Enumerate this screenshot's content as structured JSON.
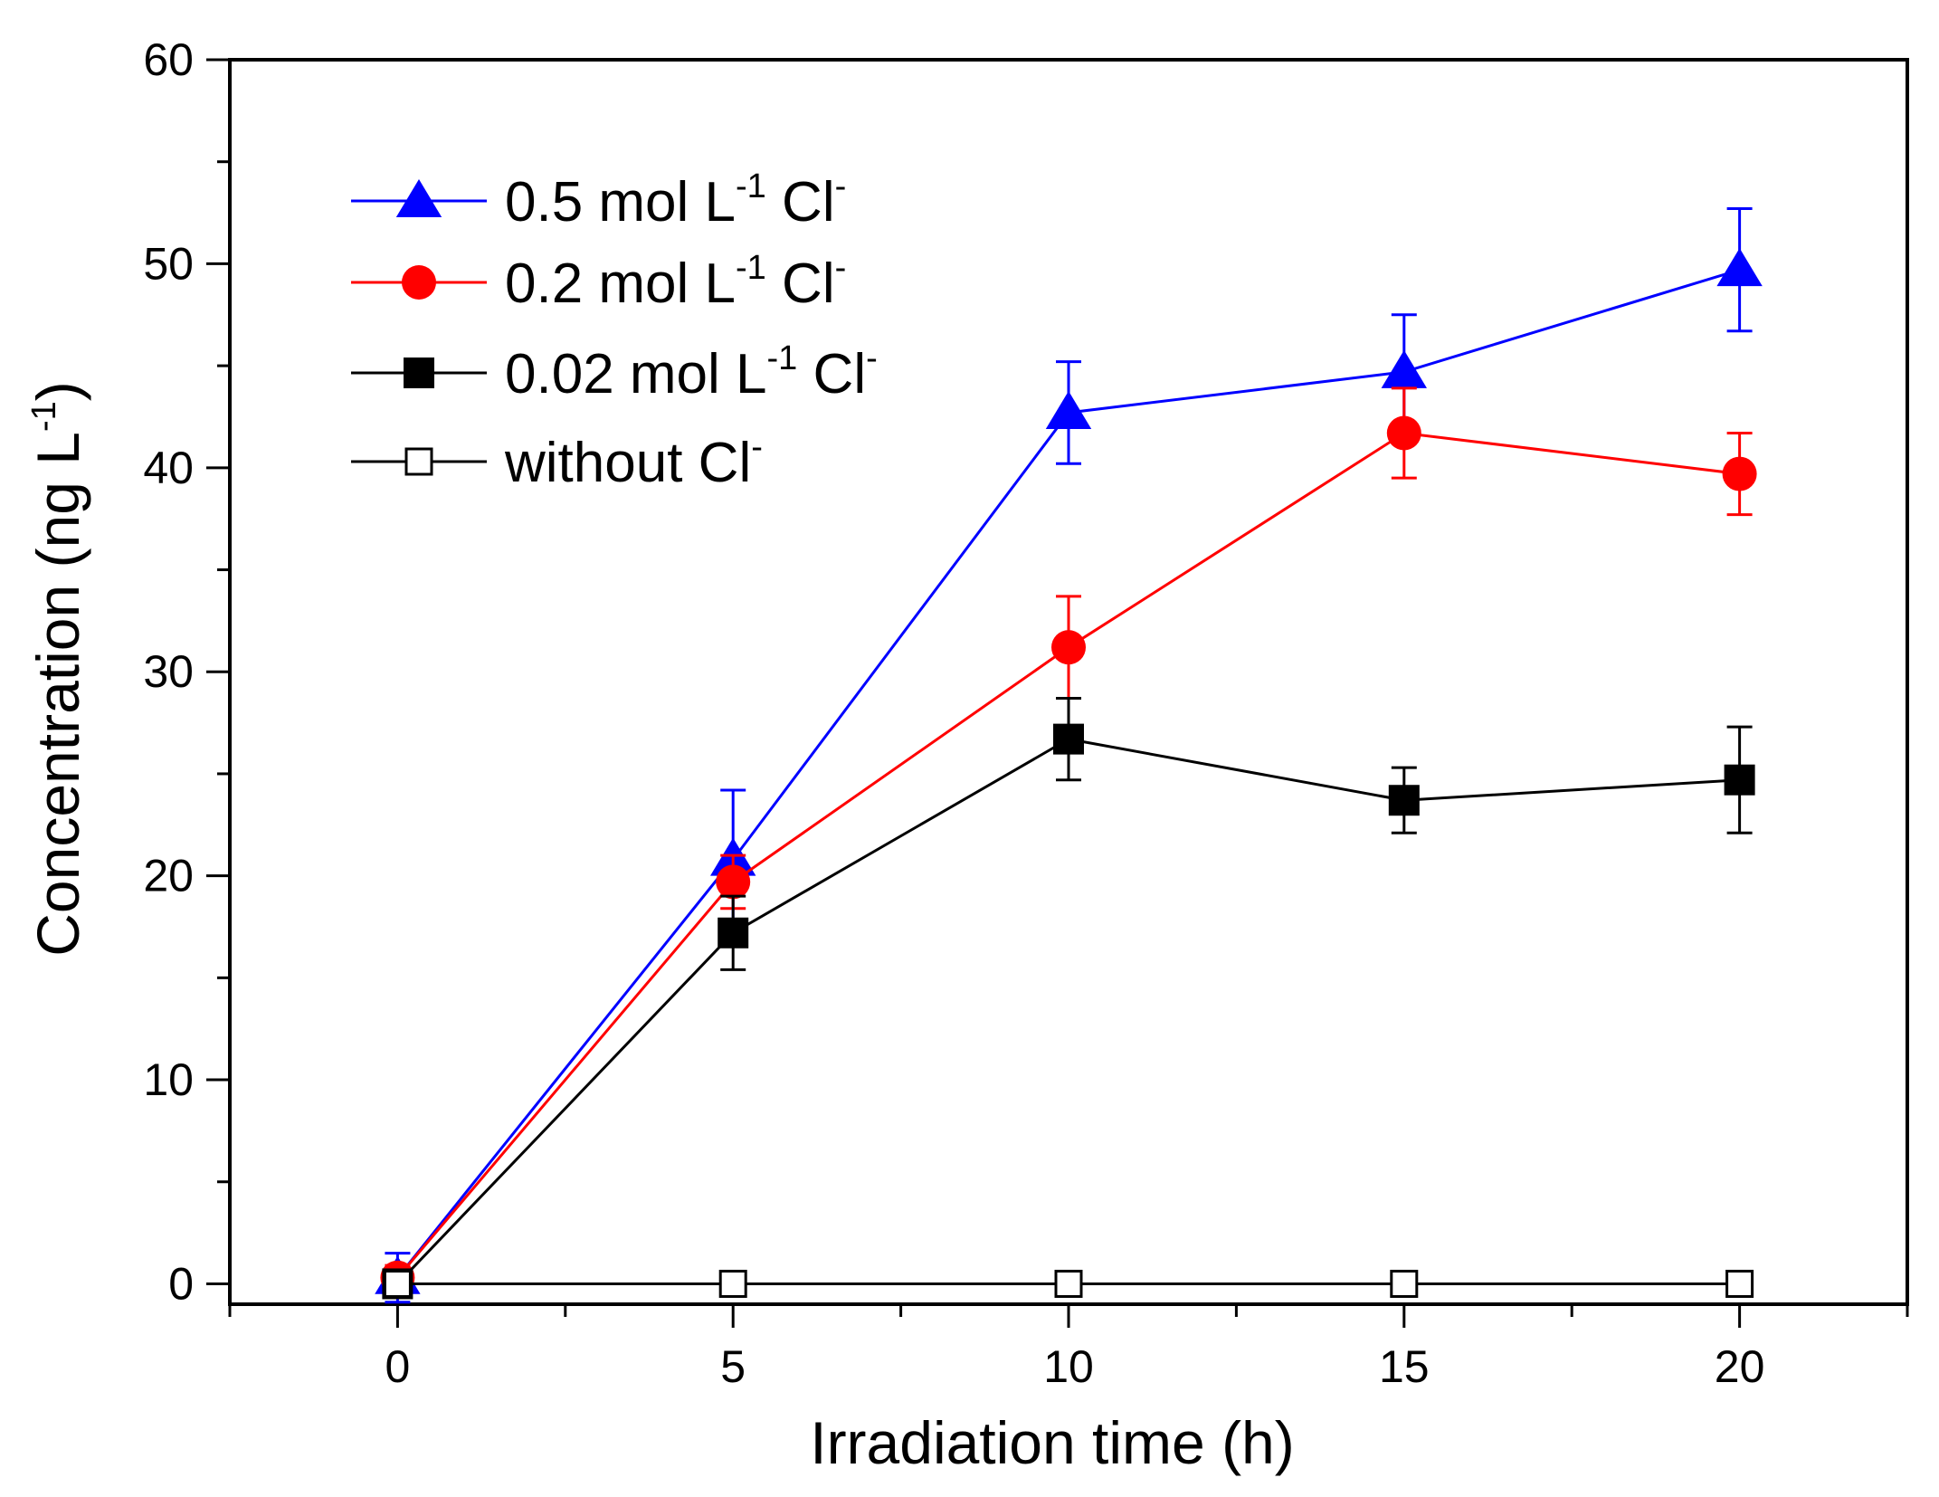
{
  "chart_data": {
    "type": "line",
    "title": "",
    "xlabel": "Irradiation time (h)",
    "ylabel_main": "Concentration (ng L",
    "ylabel_sup": "-1",
    "ylabel_close": ")",
    "xlim": [
      -2.5,
      22.5
    ],
    "ylim": [
      -1,
      60
    ],
    "xticks": [
      0,
      5,
      10,
      15,
      20
    ],
    "xtick_labels": [
      "0",
      "5",
      "10",
      "15",
      "20"
    ],
    "yticks": [
      0,
      10,
      20,
      30,
      40,
      50,
      60
    ],
    "ytick_labels": [
      "0",
      "10",
      "20",
      "30",
      "40",
      "50",
      "60"
    ],
    "x": [
      0,
      5,
      10,
      15,
      20
    ],
    "legend_position": "top-left",
    "series": [
      {
        "name": "0.5 mol L-1 Cl-",
        "label_main": "0.5 mol L",
        "label_sup1": "-1",
        "label_mid": " Cl",
        "label_sup2": "-",
        "color": "#0000ff",
        "marker": "triangle",
        "values": [
          0.3,
          20.8,
          42.7,
          44.7,
          49.7
        ],
        "errors": [
          1.2,
          3.4,
          2.5,
          2.8,
          3.0
        ]
      },
      {
        "name": "0.2 mol L-1 Cl-",
        "label_main": "0.2 mol L",
        "label_sup1": "-1",
        "label_mid": " Cl",
        "label_sup2": "-",
        "color": "#ff0000",
        "marker": "circle",
        "values": [
          0.3,
          19.7,
          31.2,
          41.7,
          39.7
        ],
        "errors": [
          0.6,
          1.3,
          2.5,
          2.2,
          2.0
        ]
      },
      {
        "name": "0.02 mol L-1 Cl-",
        "label_main": "0.02 mol L",
        "label_sup1": "-1",
        "label_mid": " Cl",
        "label_sup2": "-",
        "color": "#000000",
        "marker": "square",
        "values": [
          0.0,
          17.2,
          26.7,
          23.7,
          24.7
        ],
        "errors": [
          0.5,
          1.8,
          2.0,
          1.6,
          2.6
        ]
      },
      {
        "name": "without Cl-",
        "label_main": "without Cl",
        "label_sup1": "",
        "label_mid": "",
        "label_sup2": "-",
        "color": "#000000",
        "marker": "open-square",
        "values": [
          0,
          0,
          0,
          0,
          0
        ],
        "errors": [
          0,
          0,
          0,
          0,
          0
        ]
      }
    ]
  }
}
